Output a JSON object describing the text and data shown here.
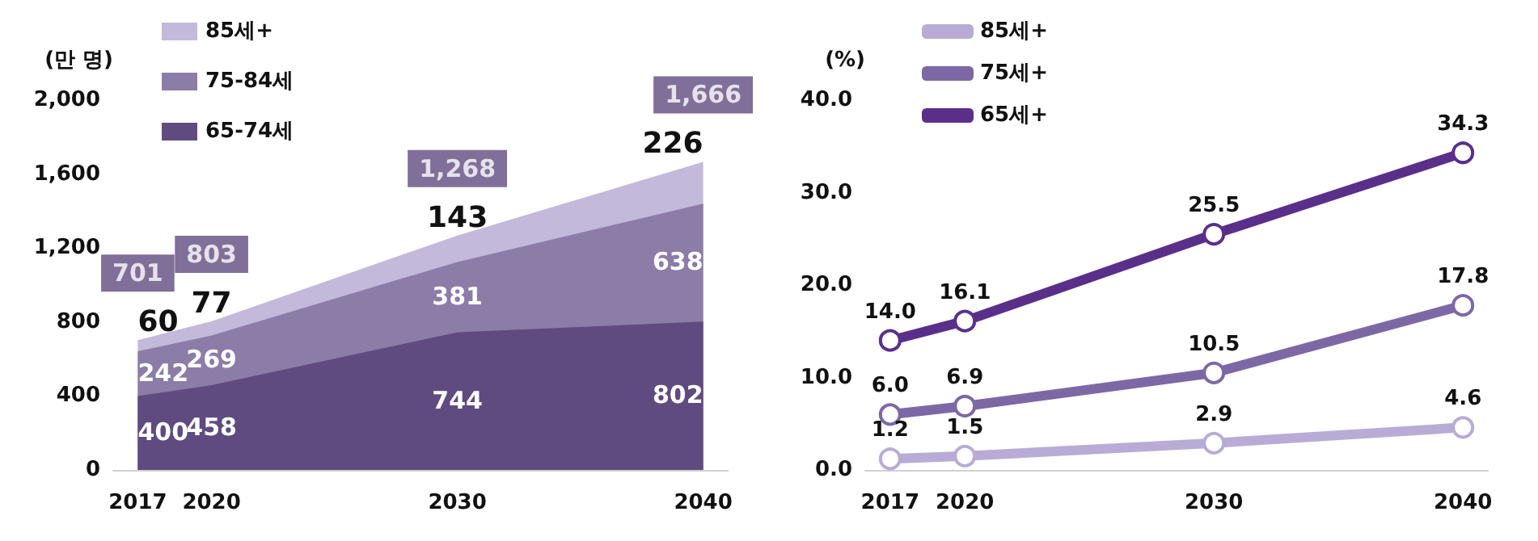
{
  "chart_data": [
    {
      "type": "area",
      "stacked": true,
      "ylabel": "(만 명)",
      "x": [
        2017,
        2020,
        2030,
        2040
      ],
      "xlim": [
        2016,
        2041
      ],
      "xticks": [
        2017,
        2020,
        2030,
        2040
      ],
      "ylim": [
        0,
        2000
      ],
      "yticks": [
        {
          "value": 0,
          "label": "0"
        },
        {
          "value": 400,
          "label": "400"
        },
        {
          "value": 800,
          "label": "800"
        },
        {
          "value": 1200,
          "label": "1,200"
        },
        {
          "value": 1600,
          "label": "1,600"
        },
        {
          "value": 2000,
          "label": "2,000"
        }
      ],
      "series": [
        {
          "name": "65-74세",
          "color": "#5f4b7f",
          "values": [
            400,
            458,
            744,
            802
          ]
        },
        {
          "name": "75-84세",
          "color": "#8c7ca8",
          "values": [
            242,
            269,
            381,
            638
          ]
        },
        {
          "name": "85세+",
          "color": "#c3b9da",
          "values": [
            60,
            77,
            143,
            226
          ]
        }
      ],
      "totals": [
        "701",
        "803",
        "1,268",
        "1,666"
      ],
      "data_labels": true,
      "legend": "top left",
      "grid": false
    },
    {
      "type": "line",
      "ylabel": "(%)",
      "x": [
        2017,
        2020,
        2030,
        2040
      ],
      "xlim": [
        2016,
        2041
      ],
      "xticks": [
        2017,
        2020,
        2030,
        2040
      ],
      "ylim": [
        0,
        40
      ],
      "yticks": [
        {
          "value": 0,
          "label": "0.0"
        },
        {
          "value": 10,
          "label": "10.0"
        },
        {
          "value": 20,
          "label": "20.0"
        },
        {
          "value": 30,
          "label": "30.0"
        },
        {
          "value": 40,
          "label": "40.0"
        }
      ],
      "series": [
        {
          "name": "85세+",
          "color": "#b8acd6",
          "values": [
            1.2,
            1.5,
            2.9,
            4.6
          ],
          "value_labels": [
            "1.2",
            "1.5",
            "2.9",
            "4.6"
          ]
        },
        {
          "name": "75세+",
          "color": "#7d68a6",
          "values": [
            6.0,
            6.9,
            10.5,
            17.8
          ],
          "value_labels": [
            "6.0",
            "6.9",
            "10.5",
            "17.8"
          ]
        },
        {
          "name": "65세+",
          "color": "#5a2f8a",
          "values": [
            14.0,
            16.1,
            25.5,
            34.3
          ],
          "value_labels": [
            "14.0",
            "16.1",
            "25.5",
            "34.3"
          ]
        }
      ],
      "marker": "circle",
      "legend": "top left",
      "grid": false
    }
  ]
}
